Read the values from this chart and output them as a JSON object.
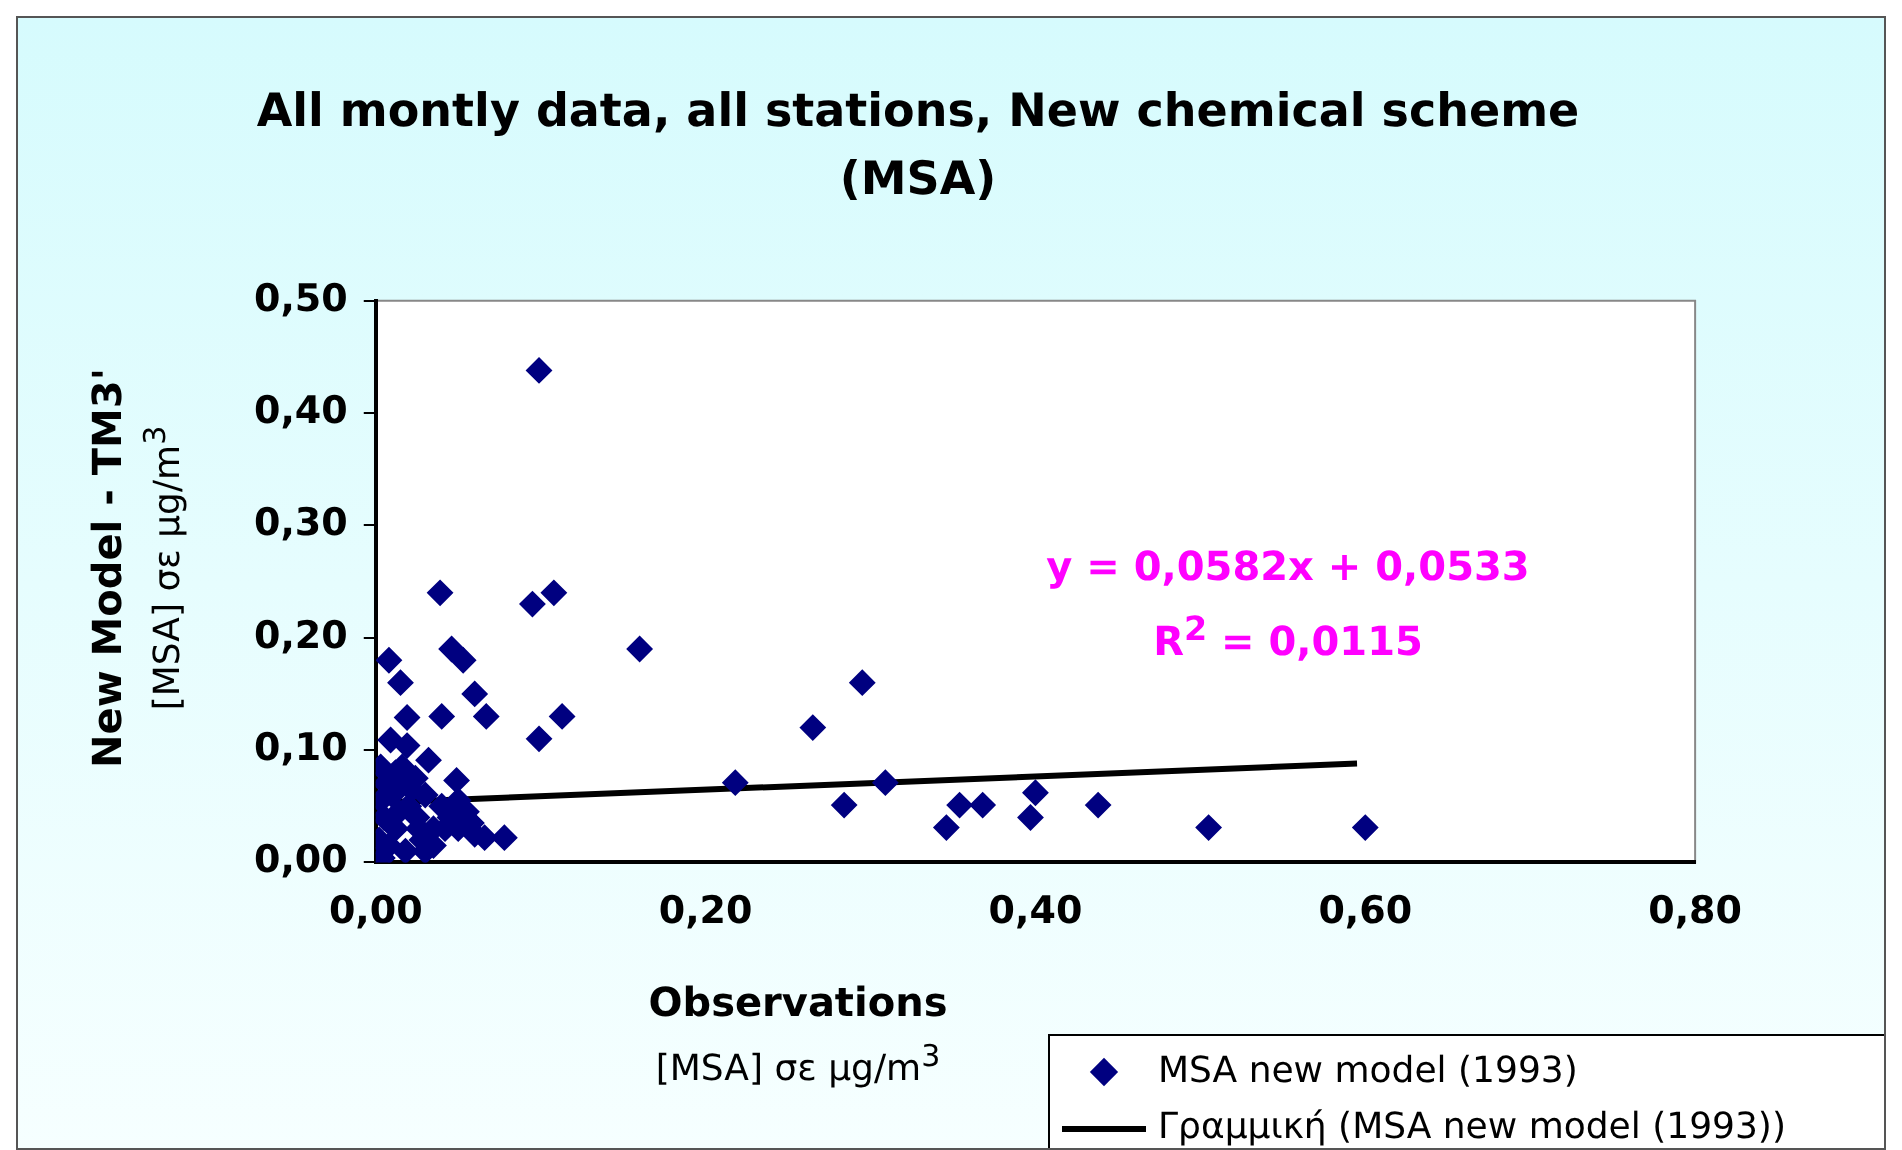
{
  "chart_data": {
    "type": "scatter",
    "title": "All montly data, all stations, New chemical scheme (MSA)",
    "xlabel": "Observations",
    "subtitle": "[MSA] σε μg/m$^{3}$",
    "ylabel": "New Model - TM3'",
    "y2label": "[MSA] σε μg/m$^{3}$",
    "xlim": [
      0,
      0.8
    ],
    "xticks": [
      {
        "value": 0,
        "label": "0,00"
      },
      {
        "value": 0.2,
        "label": "0,20"
      },
      {
        "value": 0.4,
        "label": "0,40"
      },
      {
        "value": 0.6,
        "label": "0,60"
      },
      {
        "value": 0.8,
        "label": "0,80"
      }
    ],
    "ylim": [
      0,
      0.5
    ],
    "yticks": [
      {
        "value": 0,
        "label": "0,00"
      },
      {
        "value": 0.1,
        "label": "0,10"
      },
      {
        "value": 0.2,
        "label": "0,20"
      },
      {
        "value": 0.3,
        "label": "0,30"
      },
      {
        "value": 0.4,
        "label": "0,40"
      },
      {
        "value": 0.5,
        "label": "0,50"
      }
    ],
    "grid": false,
    "legend": "bottom right",
    "marker": "diamond",
    "annotations": [
      "y = 0,0582x + 0,0533",
      "R$^{2}$ = 0,0115"
    ],
    "series": [
      {
        "name": "MSA new model (1993)",
        "color": "#000080",
        "x": [
          0.099,
          0.039,
          0.095,
          0.108,
          0.046,
          0.053,
          0.16,
          0.008,
          0.015,
          0.06,
          0.295,
          0.265,
          0.113,
          0.099,
          0.067,
          0.04,
          0.019,
          0.009,
          0.019,
          0.032,
          0.049,
          0.003,
          0.218,
          0.309,
          0.284,
          0.354,
          0.368,
          0.346,
          0.4,
          0.397,
          0.438,
          0.505,
          0.6,
          0.078,
          0.066,
          0.004,
          0.002,
          0.005,
          0.01,
          0.012,
          0.015,
          0.02,
          0.025,
          0.03,
          0.035,
          0.04,
          0.045,
          0.05,
          0.055,
          0.06,
          0.008,
          0.012,
          0.018,
          0.022,
          0.028,
          0.035,
          0.042,
          0.006,
          0.014,
          0.024,
          0.03,
          0.05,
          0.058,
          0.003,
          0.016,
          0.026
        ],
        "values": [
          0.438,
          0.24,
          0.23,
          0.24,
          0.19,
          0.18,
          0.19,
          0.18,
          0.16,
          0.15,
          0.16,
          0.12,
          0.13,
          0.11,
          0.13,
          0.13,
          0.129,
          0.109,
          0.104,
          0.091,
          0.073,
          0.085,
          0.071,
          0.071,
          0.051,
          0.051,
          0.051,
          0.031,
          0.062,
          0.04,
          0.051,
          0.031,
          0.031,
          0.022,
          0.022,
          0.004,
          0.02,
          0.04,
          0.06,
          0.03,
          0.07,
          0.05,
          0.04,
          0.06,
          0.03,
          0.05,
          0.04,
          0.03,
          0.045,
          0.025,
          0.015,
          0.08,
          0.01,
          0.065,
          0.02,
          0.015,
          0.03,
          0.07,
          0.045,
          0.075,
          0.01,
          0.055,
          0.035,
          0.055,
          0.085,
          0.03
        ]
      },
      {
        "name": "Γραμμική (MSA new model (1993))",
        "type": "line",
        "color": "#000000",
        "marker": "none",
        "x": [
          0,
          0.595
        ],
        "values": [
          0.053,
          0.088
        ]
      }
    ]
  }
}
